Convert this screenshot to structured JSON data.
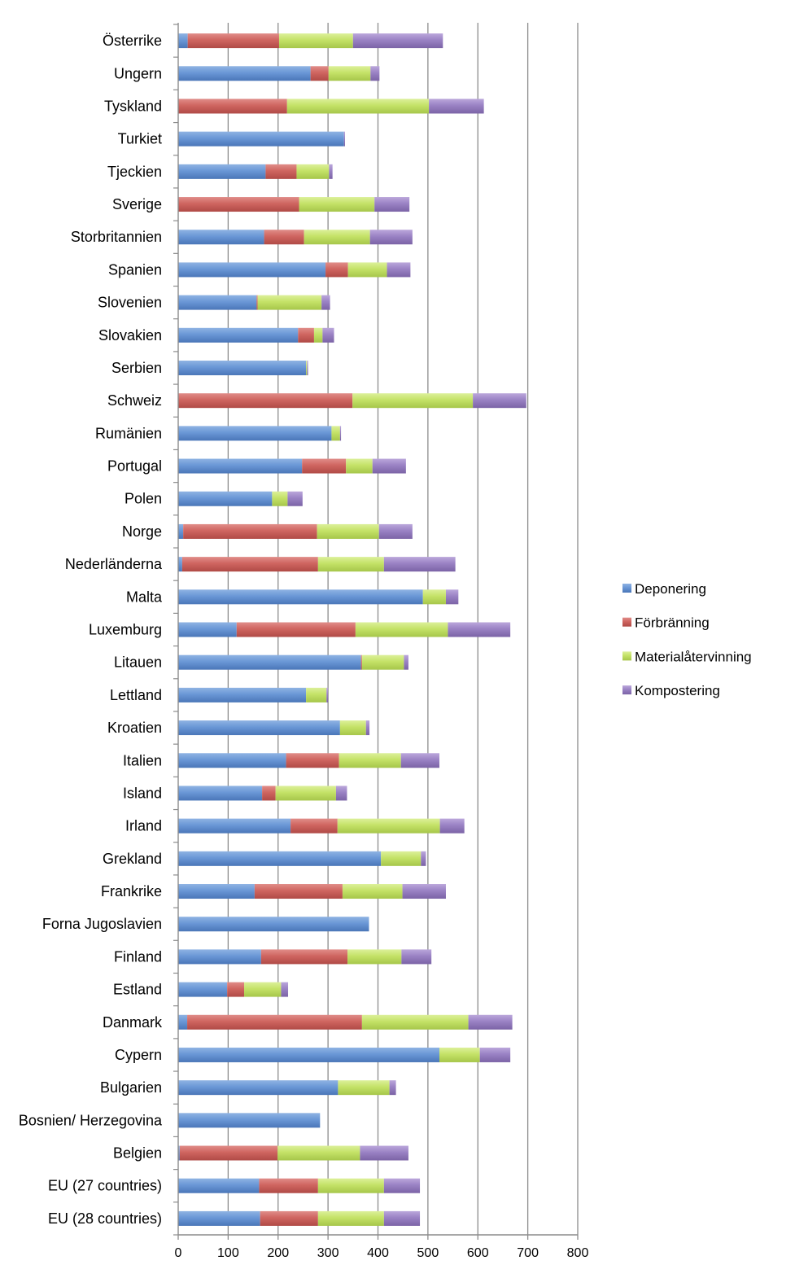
{
  "chart_data": {
    "type": "bar",
    "orientation": "horizontal",
    "stacked": true,
    "title": "",
    "xlabel": "",
    "ylabel": "",
    "xlim": [
      0,
      800
    ],
    "xticks": [
      "0",
      "100",
      "200",
      "300",
      "400",
      "500",
      "600",
      "700",
      "800"
    ],
    "grid": "vertical",
    "legend_position": "right",
    "categories": [
      "Österrike",
      "Ungern",
      "Tyskland",
      "Turkiet",
      "Tjeckien",
      "Sverige",
      "Storbritannien",
      "Spanien",
      "Slovenien",
      "Slovakien",
      "Serbien",
      "Schweiz",
      "Rumänien",
      "Portugal",
      "Polen",
      "Norge",
      "Nederländerna",
      "Malta",
      "Luxemburg",
      "Litauen",
      "Lettland",
      "Kroatien",
      "Italien",
      "Island",
      "Irland",
      "Grekland",
      "Frankrike",
      "Forna Jugoslavien",
      "Finland",
      "Estland",
      "Danmark",
      "Cypern",
      "Bulgarien",
      "Bosnien/ Herzegovina",
      "Belgien",
      "EU (27 countries)",
      "EU (28 countries)"
    ],
    "series": [
      {
        "name": "Deponering",
        "color": "#4F81BD",
        "values": [
          19,
          265,
          0,
          332,
          175,
          0,
          172,
          295,
          157,
          240,
          256,
          0,
          307,
          248,
          188,
          10,
          8,
          490,
          117,
          366,
          256,
          324,
          216,
          168,
          225,
          406,
          153,
          382,
          166,
          98,
          18,
          523,
          320,
          284,
          3,
          162,
          164
        ]
      },
      {
        "name": "Förbränning",
        "color": "#C0504D",
        "values": [
          183,
          36,
          218,
          0,
          62,
          242,
          80,
          45,
          2,
          32,
          0,
          349,
          0,
          88,
          0,
          268,
          272,
          0,
          238,
          2,
          0,
          0,
          106,
          27,
          94,
          0,
          176,
          0,
          173,
          34,
          350,
          0,
          0,
          0,
          196,
          118,
          116
        ]
      },
      {
        "name": "Materialåtervinning",
        "color": "#9BBB59",
        "values": [
          148,
          84,
          284,
          0,
          65,
          151,
          132,
          78,
          128,
          17,
          2,
          241,
          17,
          53,
          31,
          124,
          132,
          46,
          185,
          84,
          41,
          52,
          124,
          121,
          205,
          80,
          120,
          0,
          108,
          74,
          213,
          81,
          103,
          0,
          165,
          132,
          132
        ]
      },
      {
        "name": "Kompostering",
        "color": "#8064A2",
        "values": [
          180,
          18,
          110,
          2,
          7,
          70,
          85,
          47,
          17,
          23,
          2,
          107,
          2,
          67,
          30,
          67,
          143,
          25,
          125,
          9,
          3,
          7,
          77,
          22,
          49,
          10,
          87,
          0,
          60,
          14,
          88,
          61,
          13,
          0,
          97,
          72,
          72
        ]
      }
    ]
  }
}
